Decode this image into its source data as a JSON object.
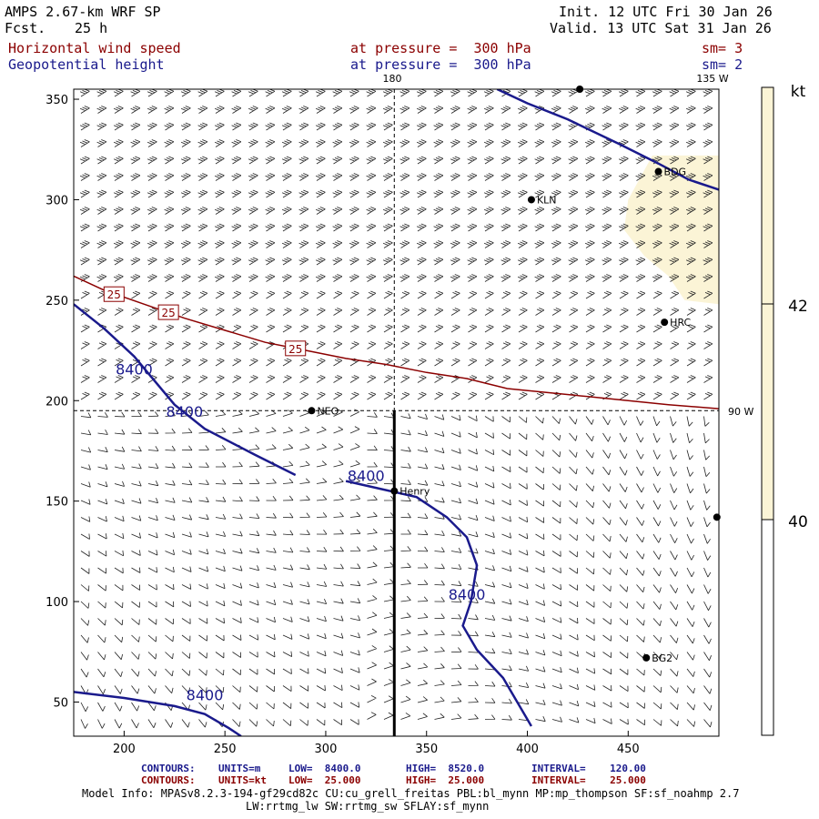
{
  "header": {
    "model": "AMPS 2.67-km WRF SP",
    "fcst_label": "Fcst.",
    "fcst_value": "25 h",
    "init": "Init. 12 UTC Fri 30 Jan 26",
    "valid": "Valid. 13 UTC Sat 31 Jan 26",
    "field1_name": "Horizontal wind speed",
    "field1_level": "at pressure =  300 hPa",
    "field1_sm": "sm= 3",
    "field2_name": "Geopotential height",
    "field2_level": "at pressure =  300 hPa",
    "field2_sm": "sm= 2"
  },
  "map_labels": {
    "top_center": "180",
    "top_right": "135 W",
    "right_mid": "90 W"
  },
  "colorbar": {
    "unit": "kt",
    "ticks": [
      "42",
      "40"
    ],
    "fill_color": "#fbf4d6"
  },
  "footer": {
    "c1_label": "CONTOURS:",
    "c1_units": "UNITS=m",
    "c1_low": "LOW=  8400.0",
    "c1_high": "HIGH=  8520.0",
    "c1_interval": "INTERVAL=    120.00",
    "c2_label": "CONTOURS:",
    "c2_units": "UNITS=kt",
    "c2_low": "LOW=  25.000",
    "c2_high": "HIGH=  25.000",
    "c2_interval": "INTERVAL=    25.000",
    "model_info": "Model Info: MPASv8.2.3-194-gf29cd82c CU:cu_grell_freitas PBL:bl_mynn MP:mp_thompson SF:sf_noahmp 2.7",
    "model_info2": "LW:rrtmg_lw SW:rrtmg_sw SFLAY:sf_mynn"
  },
  "chart_data": {
    "type": "contour",
    "xlim": [
      175,
      495
    ],
    "ylim": [
      33,
      355
    ],
    "xticks": [
      200,
      250,
      300,
      350,
      400,
      450
    ],
    "yticks": [
      50,
      100,
      150,
      200,
      250,
      300,
      350
    ],
    "height_contours": {
      "units": "m",
      "color": "#1a1a8c",
      "label": "8400",
      "lines": [
        [
          [
            175,
            248
          ],
          [
            190,
            236
          ],
          [
            205,
            222
          ],
          [
            215,
            210
          ],
          [
            225,
            198
          ],
          [
            240,
            186
          ],
          [
            265,
            173
          ],
          [
            285,
            163
          ]
        ],
        [
          [
            310,
            160
          ],
          [
            345,
            152
          ],
          [
            360,
            142
          ],
          [
            370,
            132
          ],
          [
            375,
            118
          ],
          [
            372,
            100
          ],
          [
            368,
            88
          ],
          [
            375,
            76
          ],
          [
            388,
            62
          ],
          [
            395,
            50
          ],
          [
            402,
            38
          ]
        ],
        [
          [
            175,
            55
          ],
          [
            200,
            52
          ],
          [
            225,
            48
          ],
          [
            240,
            44
          ],
          [
            252,
            37
          ],
          [
            258,
            33
          ]
        ],
        [
          [
            385,
            355
          ],
          [
            400,
            348
          ],
          [
            420,
            340
          ],
          [
            445,
            328
          ],
          [
            465,
            318
          ],
          [
            480,
            310
          ],
          [
            495,
            305
          ]
        ]
      ],
      "label_positions": [
        [
          205,
          213
        ],
        [
          230,
          192
        ],
        [
          320,
          160
        ],
        [
          370,
          101
        ],
        [
          240,
          51
        ]
      ]
    },
    "speed_contours": {
      "units": "kt",
      "color": "#8b0000",
      "label": "25",
      "line": [
        [
          175,
          262
        ],
        [
          190,
          255
        ],
        [
          210,
          248
        ],
        [
          230,
          241
        ],
        [
          250,
          235
        ],
        [
          270,
          229
        ],
        [
          290,
          225
        ],
        [
          310,
          221
        ],
        [
          330,
          218
        ],
        [
          350,
          214
        ],
        [
          370,
          211
        ],
        [
          390,
          206
        ],
        [
          410,
          204
        ],
        [
          430,
          202
        ],
        [
          450,
          200
        ],
        [
          470,
          198
        ],
        [
          495,
          196
        ]
      ],
      "label_positions": [
        [
          195,
          253
        ],
        [
          222,
          244
        ],
        [
          285,
          226
        ]
      ]
    },
    "stations": [
      {
        "name": "BDG",
        "x": 465,
        "y": 314
      },
      {
        "name": "KLN",
        "x": 402,
        "y": 300
      },
      {
        "name": "HRC",
        "x": 468,
        "y": 239
      },
      {
        "name": "NEO",
        "x": 293,
        "y": 195
      },
      {
        "name": "Henry",
        "x": 334,
        "y": 155
      },
      {
        "name": "BG2",
        "x": 459,
        "y": 72
      },
      {
        "name": "",
        "x": 494,
        "y": 142
      },
      {
        "name": "",
        "x": 426,
        "y": 355
      }
    ],
    "reference_lines": {
      "vertical_x": 334,
      "horizontal_y": 195
    }
  }
}
